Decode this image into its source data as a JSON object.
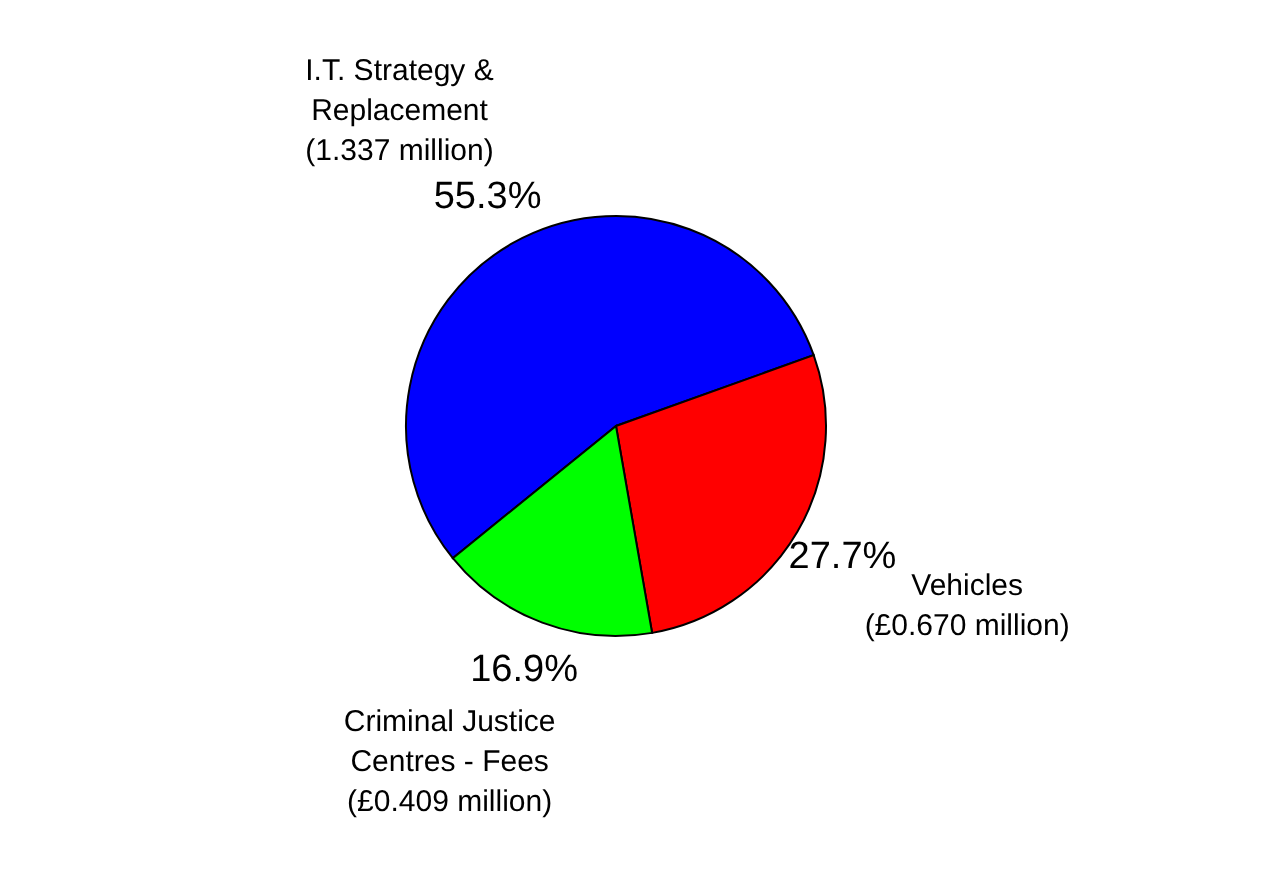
{
  "chart_data": {
    "type": "pie",
    "categories": [
      "I.T. Strategy &\nReplacement\n(1.337 million)",
      "Vehicles\n(£0.670 million)",
      "Criminal Justice\nCentres - Fees\n(£0.409 million)"
    ],
    "values": [
      55.3,
      27.7,
      16.9
    ],
    "colors": [
      "#0000ff",
      "#ff0000",
      "#00ff00"
    ],
    "value_labels": [
      "55.3%",
      "27.7%",
      "16.9%"
    ]
  }
}
